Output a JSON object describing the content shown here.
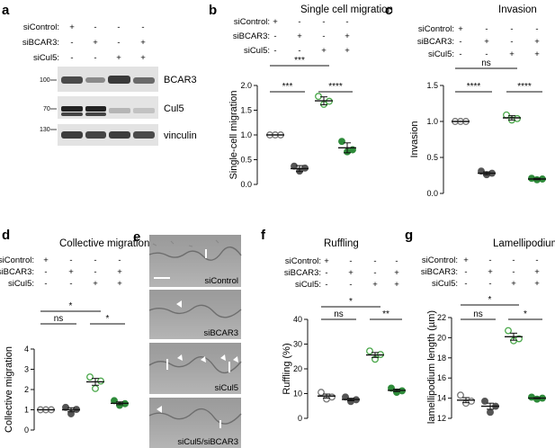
{
  "colors": {
    "control": "#777777",
    "bcar3": "#555555",
    "cul5": "#4aa84a",
    "both": "#2e8b3a",
    "axis": "#111111"
  },
  "condition_labels": [
    "siControl:",
    "siBCAR3:",
    "siCul5:"
  ],
  "pm": {
    "siControl": [
      "+",
      "-",
      "-",
      "-"
    ],
    "siBCAR3": [
      "-",
      "+",
      "-",
      "+"
    ],
    "siCul5": [
      "-",
      "-",
      "+",
      "+"
    ]
  },
  "panel_a": {
    "letter": "a",
    "bands": [
      {
        "label": "BCAR3",
        "mw": "100"
      },
      {
        "label": "Cul5",
        "mw": "70"
      },
      {
        "label": "vinculin",
        "mw": "130"
      }
    ]
  },
  "panel_e": {
    "letter": "e",
    "images": [
      "siControl",
      "siBCAR3",
      "siCul5",
      "siCul5/siBCAR3"
    ]
  },
  "chart_data": [
    {
      "id": "b",
      "type": "scatter",
      "letter": "b",
      "title": "Single cell migration",
      "ylabel": "Single-cell migration",
      "ylim": [
        0,
        2.0
      ],
      "yticks": [
        "0.0",
        "0.5",
        "1.0",
        "1.5",
        "2.0"
      ],
      "groups": [
        {
          "points": [
            1.0,
            1.0,
            1.0
          ],
          "mean": 1.0,
          "sem": 0.0
        },
        {
          "points": [
            0.37,
            0.27,
            0.33
          ],
          "mean": 0.32,
          "sem": 0.06
        },
        {
          "points": [
            1.78,
            1.62,
            1.68
          ],
          "mean": 1.69,
          "sem": 0.08
        },
        {
          "points": [
            0.87,
            0.66,
            0.7
          ],
          "mean": 0.74,
          "sem": 0.1
        }
      ],
      "significance": [
        {
          "from": 0,
          "to": 2,
          "level": 0,
          "label": "***"
        },
        {
          "from": 0,
          "to": 1,
          "level": 1,
          "label": "***"
        },
        {
          "from": 2,
          "to": 3,
          "level": 1,
          "label": "****"
        }
      ]
    },
    {
      "id": "c",
      "type": "scatter",
      "letter": "c",
      "title": "Invasion",
      "ylabel": "Invasion",
      "ylim": [
        0,
        1.5
      ],
      "yticks": [
        "0.0",
        "0.5",
        "1.0",
        "1.5"
      ],
      "groups": [
        {
          "points": [
            1.0,
            1.0,
            1.0
          ],
          "mean": 1.0,
          "sem": 0.0
        },
        {
          "points": [
            0.31,
            0.26,
            0.28
          ],
          "mean": 0.28,
          "sem": 0.02
        },
        {
          "points": [
            1.09,
            1.02,
            1.04
          ],
          "mean": 1.05,
          "sem": 0.03
        },
        {
          "points": [
            0.21,
            0.19,
            0.2
          ],
          "mean": 0.2,
          "sem": 0.01
        }
      ],
      "significance": [
        {
          "from": 0,
          "to": 2,
          "level": 0,
          "label": "ns"
        },
        {
          "from": 0,
          "to": 1,
          "level": 1,
          "label": "****"
        },
        {
          "from": 2,
          "to": 3,
          "level": 1,
          "label": "****"
        }
      ]
    },
    {
      "id": "d",
      "type": "scatter",
      "letter": "d",
      "title": "Collective migration",
      "ylabel": "Collective migration",
      "ylim": [
        0,
        4
      ],
      "yticks": [
        "0",
        "1",
        "2",
        "3",
        "4"
      ],
      "groups": [
        {
          "points": [
            1.0,
            1.0,
            1.0
          ],
          "mean": 1.0,
          "sem": 0.0
        },
        {
          "points": [
            1.12,
            0.8,
            1.02
          ],
          "mean": 1.0,
          "sem": 0.1
        },
        {
          "points": [
            2.62,
            2.05,
            2.42
          ],
          "mean": 2.38,
          "sem": 0.17
        },
        {
          "points": [
            1.45,
            1.22,
            1.3
          ],
          "mean": 1.32,
          "sem": 0.07
        }
      ],
      "significance": [
        {
          "from": 0,
          "to": 2,
          "level": 0,
          "label": "*"
        },
        {
          "from": 0,
          "to": 1,
          "level": 1,
          "label": "ns"
        },
        {
          "from": 2,
          "to": 3,
          "level": 1,
          "label": "*"
        }
      ]
    },
    {
      "id": "f",
      "type": "scatter",
      "letter": "f",
      "title": "Ruffling",
      "ylabel": "Ruffling (%)",
      "ylim": [
        0,
        40
      ],
      "yticks": [
        "0",
        "10",
        "20",
        "30",
        "40"
      ],
      "groups": [
        {
          "points": [
            10.5,
            7.8,
            8.6
          ],
          "mean": 9.0,
          "sem": 0.8
        },
        {
          "points": [
            8.6,
            6.8,
            7.5
          ],
          "mean": 7.6,
          "sem": 0.5
        },
        {
          "points": [
            27.2,
            23.9,
            25.8
          ],
          "mean": 25.6,
          "sem": 1.0
        },
        {
          "points": [
            12.2,
            10.5,
            11.1
          ],
          "mean": 11.3,
          "sem": 0.5
        }
      ],
      "significance": [
        {
          "from": 0,
          "to": 2,
          "level": 0,
          "label": "*"
        },
        {
          "from": 0,
          "to": 1,
          "level": 1,
          "label": "ns"
        },
        {
          "from": 2,
          "to": 3,
          "level": 1,
          "label": "**"
        }
      ]
    },
    {
      "id": "g",
      "type": "scatter",
      "letter": "g",
      "title": "Lamellipodium length",
      "ylabel": "lamellipodium length (µm)",
      "ylim": [
        12,
        22
      ],
      "yticks": [
        "12",
        "14",
        "16",
        "18",
        "20",
        "22"
      ],
      "groups": [
        {
          "points": [
            14.3,
            13.5,
            13.7
          ],
          "mean": 13.8,
          "sem": 0.25
        },
        {
          "points": [
            13.7,
            12.6,
            13.2
          ],
          "mean": 13.2,
          "sem": 0.3
        },
        {
          "points": [
            20.7,
            19.7,
            19.9
          ],
          "mean": 20.1,
          "sem": 0.35
        },
        {
          "points": [
            14.1,
            13.9,
            14.0
          ],
          "mean": 14.0,
          "sem": 0.05
        }
      ],
      "significance": [
        {
          "from": 0,
          "to": 2,
          "level": 0,
          "label": "*"
        },
        {
          "from": 0,
          "to": 1,
          "level": 1,
          "label": "ns"
        },
        {
          "from": 2,
          "to": 3,
          "level": 1,
          "label": "*"
        }
      ]
    }
  ]
}
